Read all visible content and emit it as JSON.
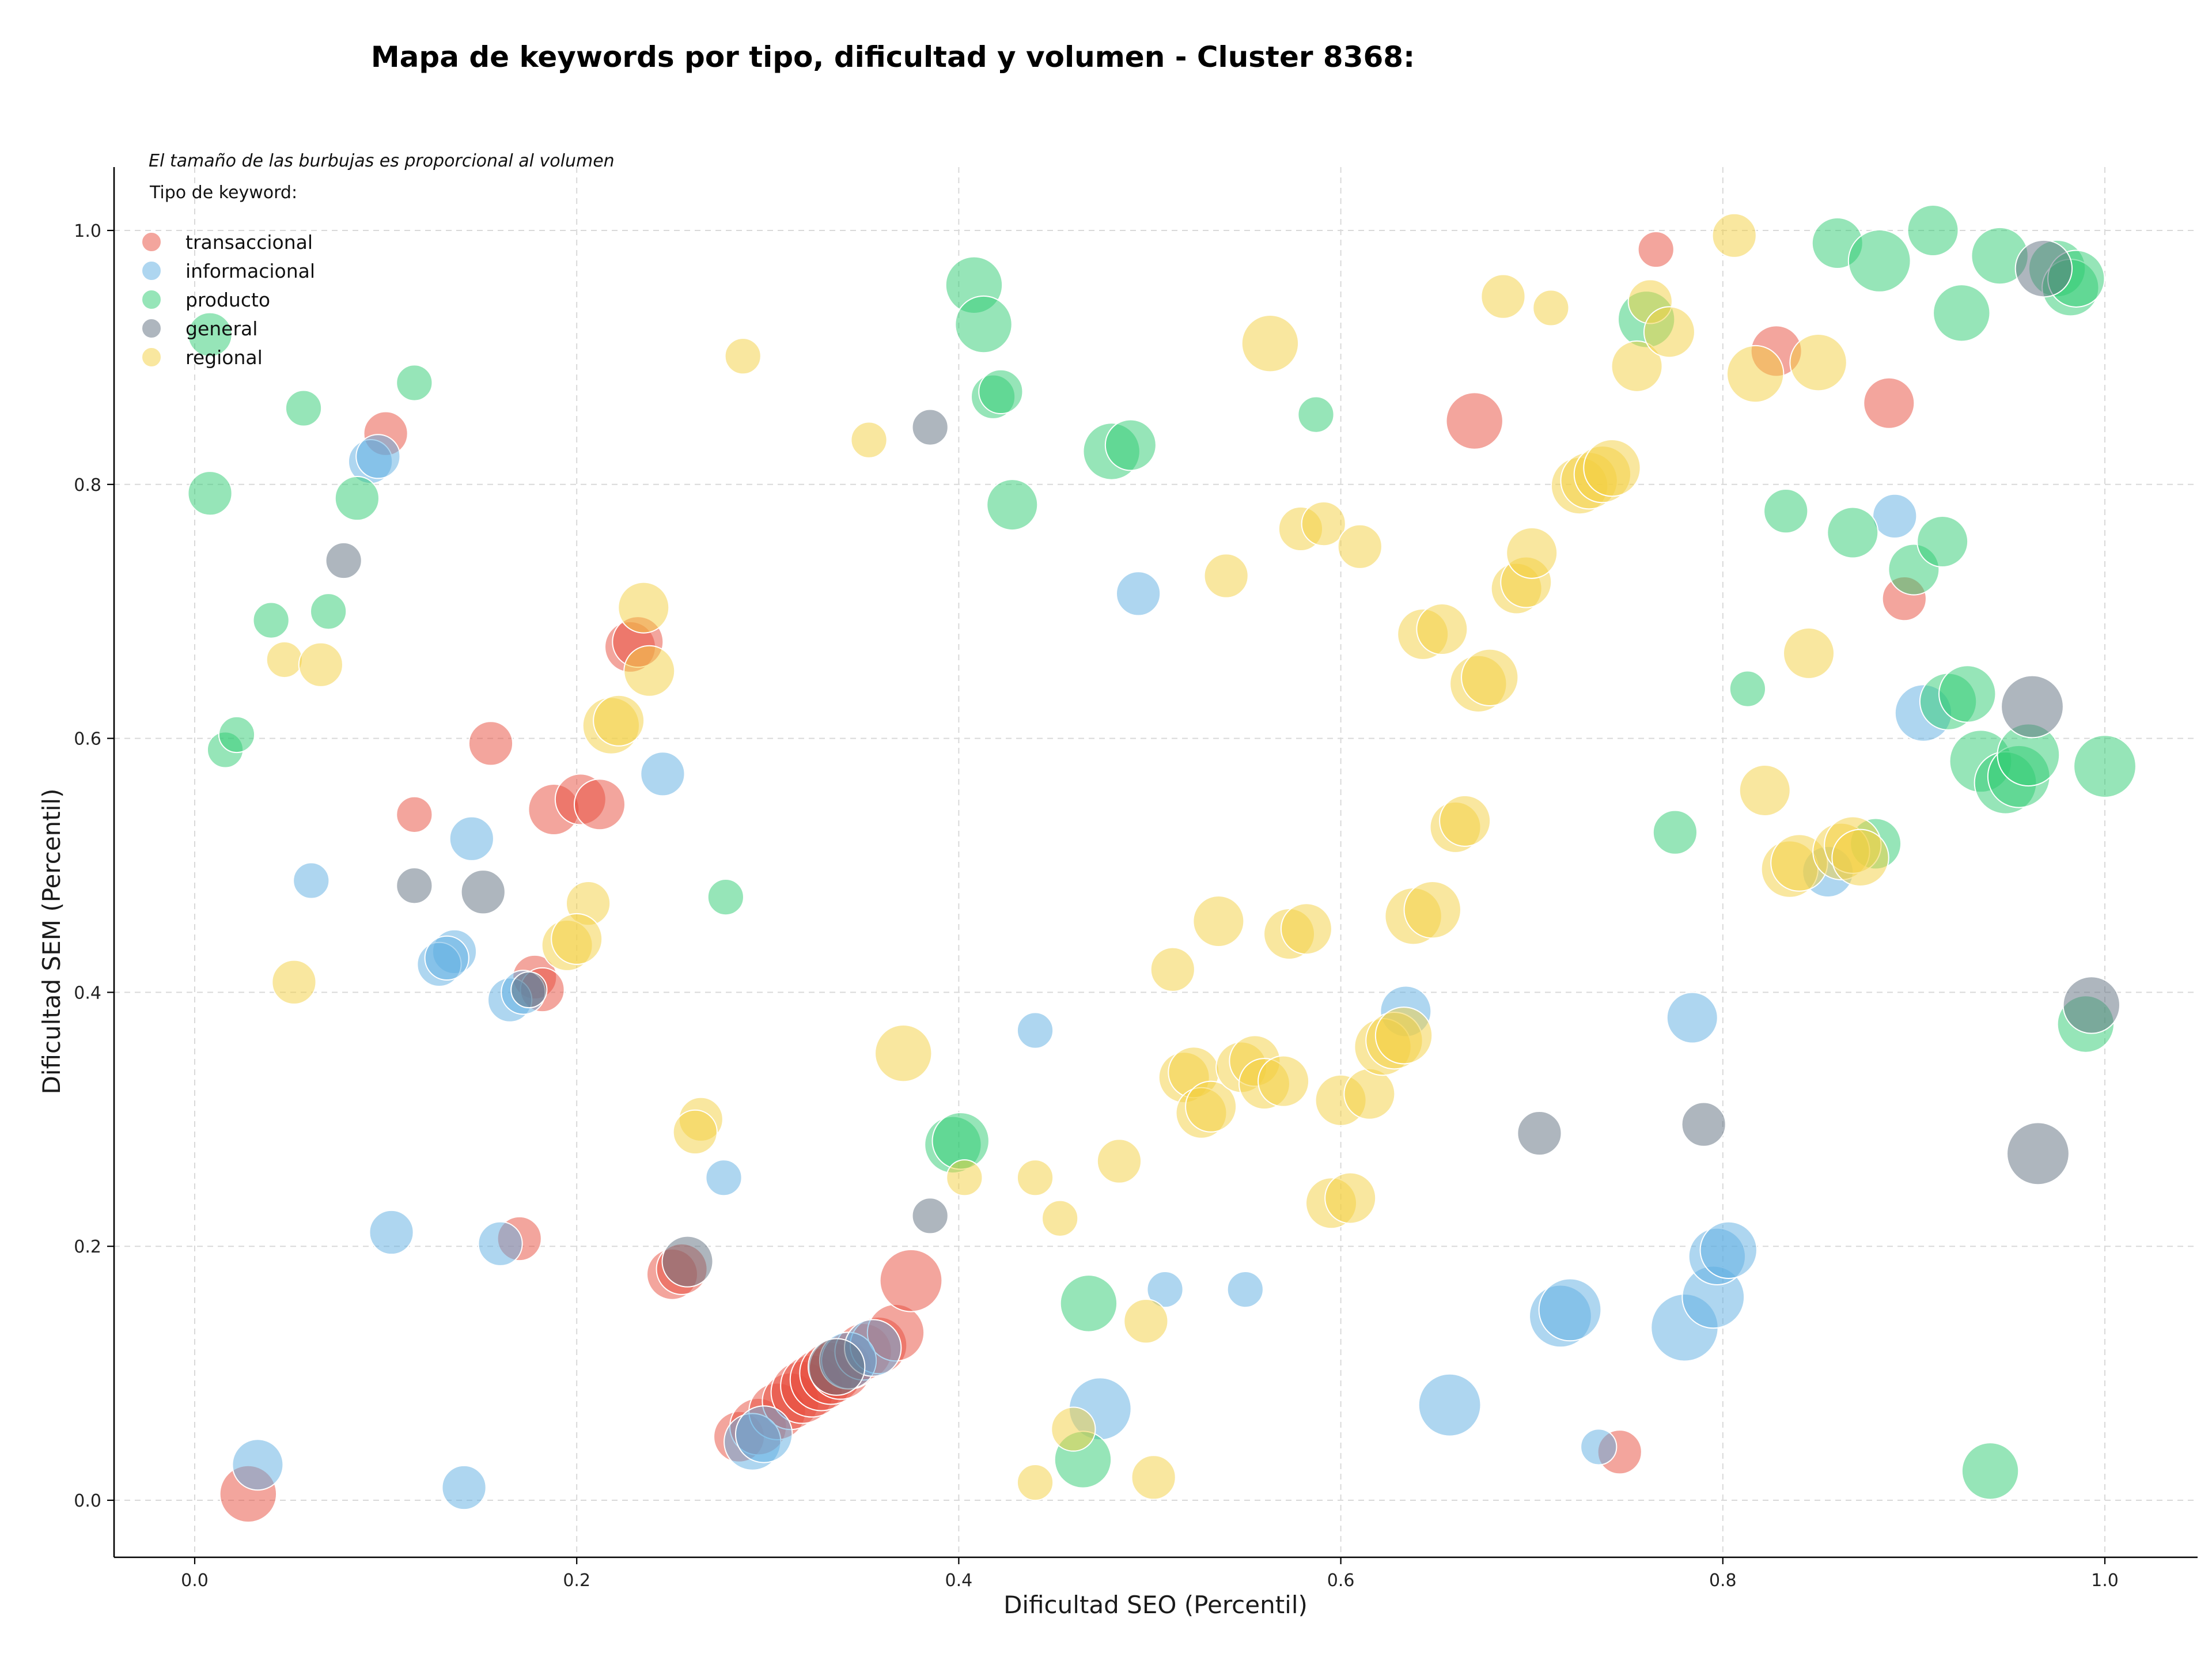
{
  "chart_data": {
    "type": "scatter",
    "title": "Mapa de keywords por tipo, dificultad y volumen - Cluster 8368:",
    "xlabel": "Dificultad SEO (Percentil)",
    "ylabel": "Dificultad SEM (Percentil)",
    "note": "El tamaño de las burbujas es proporcional al volumen",
    "legend_title": "Tipo de keyword:",
    "legend_position": "top-left",
    "xlim": [
      -0.04,
      1.05
    ],
    "ylim": [
      -0.045,
      1.05
    ],
    "xticks": [
      "0.0",
      "0.2",
      "0.4",
      "0.6",
      "0.8",
      "1.0"
    ],
    "yticks": [
      "0.0",
      "0.2",
      "0.4",
      "0.6",
      "0.8",
      "1.0"
    ],
    "grid": true,
    "size_encoding": "bubble area proportional to volume (relative size 1-10)",
    "series": [
      {
        "name": "transaccional",
        "color": "#e74c3c",
        "points": [
          [
            0.1,
            0.84,
            3
          ],
          [
            0.115,
            0.54,
            2
          ],
          [
            0.155,
            0.596,
            3
          ],
          [
            0.178,
            0.412,
            3
          ],
          [
            0.182,
            0.402,
            3
          ],
          [
            0.188,
            0.544,
            4
          ],
          [
            0.202,
            0.552,
            4
          ],
          [
            0.212,
            0.548,
            4
          ],
          [
            0.228,
            0.672,
            4
          ],
          [
            0.232,
            0.676,
            4
          ],
          [
            0.17,
            0.206,
            3
          ],
          [
            0.25,
            0.178,
            4
          ],
          [
            0.255,
            0.182,
            4
          ],
          [
            0.028,
            0.005,
            5
          ],
          [
            0.285,
            0.05,
            4
          ],
          [
            0.295,
            0.058,
            5
          ],
          [
            0.305,
            0.07,
            5
          ],
          [
            0.312,
            0.078,
            5
          ],
          [
            0.318,
            0.085,
            6
          ],
          [
            0.323,
            0.09,
            6
          ],
          [
            0.328,
            0.095,
            6
          ],
          [
            0.333,
            0.1,
            6
          ],
          [
            0.338,
            0.104,
            6
          ],
          [
            0.343,
            0.11,
            5
          ],
          [
            0.35,
            0.117,
            5
          ],
          [
            0.358,
            0.122,
            5
          ],
          [
            0.367,
            0.132,
            5
          ],
          [
            0.375,
            0.173,
            6
          ],
          [
            0.67,
            0.85,
            5
          ],
          [
            0.765,
            0.985,
            2
          ],
          [
            0.828,
            0.905,
            4
          ],
          [
            0.887,
            0.864,
            4
          ],
          [
            0.895,
            0.71,
            3
          ],
          [
            0.746,
            0.038,
            3
          ]
        ]
      },
      {
        "name": "informacional",
        "color": "#5dade2",
        "points": [
          [
            0.092,
            0.818,
            3
          ],
          [
            0.096,
            0.822,
            3
          ],
          [
            0.061,
            0.488,
            2
          ],
          [
            0.145,
            0.521,
            3
          ],
          [
            0.136,
            0.432,
            3
          ],
          [
            0.128,
            0.422,
            3
          ],
          [
            0.132,
            0.427,
            3
          ],
          [
            0.165,
            0.394,
            3
          ],
          [
            0.172,
            0.4,
            3
          ],
          [
            0.245,
            0.572,
            3
          ],
          [
            0.103,
            0.211,
            3
          ],
          [
            0.16,
            0.202,
            3
          ],
          [
            0.033,
            0.028,
            4
          ],
          [
            0.141,
            0.01,
            3
          ],
          [
            0.277,
            0.254,
            2
          ],
          [
            0.292,
            0.046,
            5
          ],
          [
            0.298,
            0.052,
            5
          ],
          [
            0.342,
            0.11,
            5
          ],
          [
            0.355,
            0.12,
            5
          ],
          [
            0.44,
            0.37,
            2
          ],
          [
            0.494,
            0.714,
            3
          ],
          [
            0.474,
            0.072,
            6
          ],
          [
            0.508,
            0.166,
            2
          ],
          [
            0.55,
            0.166,
            2
          ],
          [
            0.634,
            0.385,
            4
          ],
          [
            0.657,
            0.075,
            6
          ],
          [
            0.715,
            0.145,
            6
          ],
          [
            0.72,
            0.15,
            6
          ],
          [
            0.735,
            0.042,
            2
          ],
          [
            0.784,
            0.38,
            4
          ],
          [
            0.78,
            0.136,
            7
          ],
          [
            0.795,
            0.16,
            6
          ],
          [
            0.797,
            0.192,
            5
          ],
          [
            0.803,
            0.197,
            5
          ],
          [
            0.855,
            0.495,
            4
          ],
          [
            0.89,
            0.775,
            3
          ],
          [
            0.905,
            0.62,
            5
          ]
        ]
      },
      {
        "name": "producto",
        "color": "#2ecc71",
        "points": [
          [
            0.008,
            0.918,
            3
          ],
          [
            0.008,
            0.793,
            3
          ],
          [
            0.016,
            0.591,
            2
          ],
          [
            0.022,
            0.603,
            2
          ],
          [
            0.04,
            0.693,
            2
          ],
          [
            0.057,
            0.86,
            2
          ],
          [
            0.07,
            0.7,
            2
          ],
          [
            0.085,
            0.789,
            3
          ],
          [
            0.115,
            0.88,
            2
          ],
          [
            0.278,
            0.475,
            2
          ],
          [
            0.408,
            0.957,
            5
          ],
          [
            0.413,
            0.926,
            5
          ],
          [
            0.418,
            0.869,
            3
          ],
          [
            0.422,
            0.873,
            3
          ],
          [
            0.428,
            0.784,
            4
          ],
          [
            0.397,
            0.28,
            5
          ],
          [
            0.401,
            0.283,
            5
          ],
          [
            0.468,
            0.155,
            5
          ],
          [
            0.465,
            0.032,
            5
          ],
          [
            0.48,
            0.826,
            5
          ],
          [
            0.49,
            0.831,
            4
          ],
          [
            0.587,
            0.855,
            2
          ],
          [
            0.76,
            0.93,
            5
          ],
          [
            0.775,
            0.526,
            3
          ],
          [
            0.813,
            0.639,
            2
          ],
          [
            0.833,
            0.779,
            3
          ],
          [
            0.86,
            0.99,
            4
          ],
          [
            0.868,
            0.762,
            4
          ],
          [
            0.882,
            0.976,
            6
          ],
          [
            0.88,
            0.517,
            4
          ],
          [
            0.9,
            0.733,
            4
          ],
          [
            0.91,
            1.0,
            4
          ],
          [
            0.915,
            0.755,
            4
          ],
          [
            0.918,
            0.629,
            5
          ],
          [
            0.925,
            0.935,
            5
          ],
          [
            0.928,
            0.635,
            5
          ],
          [
            0.935,
            0.582,
            6
          ],
          [
            0.94,
            0.023,
            5
          ],
          [
            0.945,
            0.98,
            5
          ],
          [
            0.948,
            0.565,
            6
          ],
          [
            0.955,
            0.57,
            6
          ],
          [
            0.96,
            0.587,
            6
          ],
          [
            0.975,
            0.97,
            5
          ],
          [
            0.982,
            0.955,
            5
          ],
          [
            0.985,
            0.962,
            5
          ],
          [
            0.99,
            0.375,
            5
          ],
          [
            1.0,
            0.578,
            6
          ]
        ]
      },
      {
        "name": "general",
        "color": "#5d6d7e",
        "points": [
          [
            0.078,
            0.74,
            2
          ],
          [
            0.115,
            0.484,
            2
          ],
          [
            0.151,
            0.479,
            3
          ],
          [
            0.175,
            0.402,
            2
          ],
          [
            0.258,
            0.188,
            4
          ],
          [
            0.336,
            0.105,
            5
          ],
          [
            0.385,
            0.845,
            2
          ],
          [
            0.385,
            0.224,
            2
          ],
          [
            0.704,
            0.289,
            3
          ],
          [
            0.79,
            0.296,
            3
          ],
          [
            0.962,
            0.625,
            6
          ],
          [
            0.965,
            0.273,
            6
          ],
          [
            0.968,
            0.97,
            5
          ],
          [
            0.993,
            0.39,
            5
          ]
        ]
      },
      {
        "name": "regional",
        "color": "#f4d03f",
        "points": [
          [
            0.047,
            0.662,
            2
          ],
          [
            0.066,
            0.658,
            3
          ],
          [
            0.052,
            0.408,
            3
          ],
          [
            0.206,
            0.47,
            3
          ],
          [
            0.195,
            0.437,
            4
          ],
          [
            0.2,
            0.442,
            4
          ],
          [
            0.235,
            0.703,
            4
          ],
          [
            0.238,
            0.653,
            4
          ],
          [
            0.218,
            0.61,
            5
          ],
          [
            0.222,
            0.614,
            4
          ],
          [
            0.265,
            0.3,
            3
          ],
          [
            0.262,
            0.29,
            3
          ],
          [
            0.287,
            0.901,
            2
          ],
          [
            0.353,
            0.835,
            2
          ],
          [
            0.371,
            0.352,
            5
          ],
          [
            0.403,
            0.254,
            2
          ],
          [
            0.44,
            0.254,
            2
          ],
          [
            0.44,
            0.014,
            2
          ],
          [
            0.453,
            0.222,
            2
          ],
          [
            0.46,
            0.056,
            3
          ],
          [
            0.484,
            0.267,
            3
          ],
          [
            0.498,
            0.141,
            3
          ],
          [
            0.502,
            0.018,
            3
          ],
          [
            0.512,
            0.418,
            3
          ],
          [
            0.518,
            0.333,
            4
          ],
          [
            0.523,
            0.337,
            4
          ],
          [
            0.527,
            0.305,
            4
          ],
          [
            0.532,
            0.31,
            4
          ],
          [
            0.536,
            0.456,
            4
          ],
          [
            0.54,
            0.728,
            3
          ],
          [
            0.548,
            0.341,
            4
          ],
          [
            0.555,
            0.346,
            4
          ],
          [
            0.56,
            0.328,
            4
          ],
          [
            0.57,
            0.33,
            4
          ],
          [
            0.563,
            0.911,
            5
          ],
          [
            0.573,
            0.446,
            4
          ],
          [
            0.582,
            0.45,
            4
          ],
          [
            0.579,
            0.765,
            3
          ],
          [
            0.591,
            0.769,
            3
          ],
          [
            0.595,
            0.234,
            4
          ],
          [
            0.605,
            0.238,
            4
          ],
          [
            0.6,
            0.315,
            4
          ],
          [
            0.61,
            0.751,
            3
          ],
          [
            0.615,
            0.32,
            4
          ],
          [
            0.622,
            0.357,
            5
          ],
          [
            0.628,
            0.362,
            5
          ],
          [
            0.633,
            0.366,
            5
          ],
          [
            0.638,
            0.46,
            5
          ],
          [
            0.648,
            0.465,
            5
          ],
          [
            0.643,
            0.682,
            4
          ],
          [
            0.653,
            0.686,
            4
          ],
          [
            0.66,
            0.53,
            4
          ],
          [
            0.665,
            0.535,
            4
          ],
          [
            0.672,
            0.643,
            5
          ],
          [
            0.678,
            0.648,
            5
          ],
          [
            0.685,
            0.948,
            3
          ],
          [
            0.692,
            0.718,
            4
          ],
          [
            0.697,
            0.723,
            4
          ],
          [
            0.7,
            0.746,
            4
          ],
          [
            0.71,
            0.939,
            2
          ],
          [
            0.725,
            0.799,
            5
          ],
          [
            0.73,
            0.803,
            5
          ],
          [
            0.737,
            0.808,
            5
          ],
          [
            0.742,
            0.813,
            5
          ],
          [
            0.755,
            0.893,
            4
          ],
          [
            0.762,
            0.944,
            3
          ],
          [
            0.772,
            0.92,
            4
          ],
          [
            0.806,
            0.996,
            3
          ],
          [
            0.817,
            0.887,
            5
          ],
          [
            0.822,
            0.559,
            4
          ],
          [
            0.835,
            0.497,
            5
          ],
          [
            0.84,
            0.502,
            5
          ],
          [
            0.845,
            0.667,
            4
          ],
          [
            0.85,
            0.896,
            5
          ],
          [
            0.862,
            0.511,
            5
          ],
          [
            0.868,
            0.516,
            5
          ],
          [
            0.872,
            0.506,
            5
          ]
        ]
      }
    ]
  }
}
